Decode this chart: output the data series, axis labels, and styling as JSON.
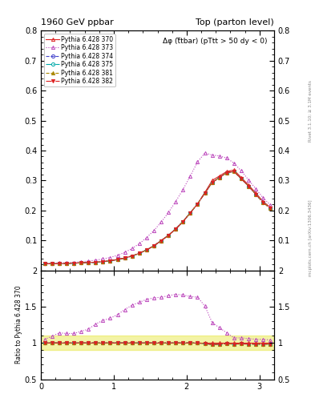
{
  "title_left": "1960 GeV ppbar",
  "title_right": "Top (parton level)",
  "annotation": "Δφ (t̅tbar) (pTtt > 50 dy < 0)",
  "right_label_top": "Rivet 3.1.10; ≥ 3.1M events",
  "right_label_bottom": "mcplots.cern.ch [arXiv:1306.3436]",
  "ylabel_ratio": "Ratio to Pythia 6.428 370",
  "xlim": [
    0,
    3.2
  ],
  "ylim_main": [
    0.0,
    0.8
  ],
  "ylim_ratio": [
    0.5,
    2.0
  ],
  "yticks_main": [
    0.0,
    0.1,
    0.2,
    0.3,
    0.4,
    0.5,
    0.6,
    0.7,
    0.8
  ],
  "yticks_ratio": [
    0.5,
    1.0,
    1.5,
    2.0
  ],
  "xticks": [
    0,
    1,
    2,
    3
  ],
  "series": [
    {
      "label": "Pythia 6.428 370",
      "color": "#dd2222",
      "marker": "^",
      "linestyle": "-",
      "fillstyle": "none",
      "markersize": 3,
      "linewidth": 0.8,
      "x": [
        0.05,
        0.15,
        0.25,
        0.35,
        0.45,
        0.55,
        0.65,
        0.75,
        0.85,
        0.95,
        1.05,
        1.15,
        1.25,
        1.35,
        1.45,
        1.55,
        1.65,
        1.75,
        1.85,
        1.95,
        2.05,
        2.15,
        2.25,
        2.35,
        2.45,
        2.55,
        2.65,
        2.75,
        2.85,
        2.95,
        3.05,
        3.15
      ],
      "y": [
        0.022,
        0.022,
        0.022,
        0.023,
        0.024,
        0.025,
        0.026,
        0.027,
        0.029,
        0.032,
        0.036,
        0.041,
        0.048,
        0.057,
        0.068,
        0.082,
        0.099,
        0.117,
        0.138,
        0.163,
        0.192,
        0.222,
        0.26,
        0.3,
        0.315,
        0.33,
        0.335,
        0.31,
        0.285,
        0.258,
        0.23,
        0.21
      ]
    },
    {
      "label": "Pythia 6.428 373",
      "color": "#bb44bb",
      "marker": "^",
      "linestyle": ":",
      "fillstyle": "none",
      "markersize": 3,
      "linewidth": 0.8,
      "x": [
        0.05,
        0.15,
        0.25,
        0.35,
        0.45,
        0.55,
        0.65,
        0.75,
        0.85,
        0.95,
        1.05,
        1.15,
        1.25,
        1.35,
        1.45,
        1.55,
        1.65,
        1.75,
        1.85,
        1.95,
        2.05,
        2.15,
        2.25,
        2.35,
        2.45,
        2.55,
        2.65,
        2.75,
        2.85,
        2.95,
        3.05,
        3.15
      ],
      "y": [
        0.023,
        0.024,
        0.025,
        0.026,
        0.027,
        0.029,
        0.031,
        0.034,
        0.038,
        0.043,
        0.05,
        0.06,
        0.073,
        0.089,
        0.109,
        0.133,
        0.161,
        0.193,
        0.23,
        0.27,
        0.315,
        0.362,
        0.392,
        0.385,
        0.382,
        0.375,
        0.358,
        0.332,
        0.302,
        0.272,
        0.242,
        0.218
      ]
    },
    {
      "label": "Pythia 6.428 374",
      "color": "#4444cc",
      "marker": "o",
      "linestyle": "--",
      "fillstyle": "none",
      "markersize": 3,
      "linewidth": 0.8,
      "x": [
        0.05,
        0.15,
        0.25,
        0.35,
        0.45,
        0.55,
        0.65,
        0.75,
        0.85,
        0.95,
        1.05,
        1.15,
        1.25,
        1.35,
        1.45,
        1.55,
        1.65,
        1.75,
        1.85,
        1.95,
        2.05,
        2.15,
        2.25,
        2.35,
        2.45,
        2.55,
        2.65,
        2.75,
        2.85,
        2.95,
        3.05,
        3.15
      ],
      "y": [
        0.022,
        0.022,
        0.022,
        0.023,
        0.024,
        0.025,
        0.026,
        0.027,
        0.029,
        0.032,
        0.036,
        0.041,
        0.048,
        0.057,
        0.068,
        0.082,
        0.099,
        0.117,
        0.138,
        0.163,
        0.192,
        0.222,
        0.258,
        0.293,
        0.31,
        0.326,
        0.33,
        0.306,
        0.281,
        0.254,
        0.226,
        0.207
      ]
    },
    {
      "label": "Pythia 6.428 375",
      "color": "#00aaaa",
      "marker": "o",
      "linestyle": "-.",
      "fillstyle": "none",
      "markersize": 3,
      "linewidth": 0.8,
      "x": [
        0.05,
        0.15,
        0.25,
        0.35,
        0.45,
        0.55,
        0.65,
        0.75,
        0.85,
        0.95,
        1.05,
        1.15,
        1.25,
        1.35,
        1.45,
        1.55,
        1.65,
        1.75,
        1.85,
        1.95,
        2.05,
        2.15,
        2.25,
        2.35,
        2.45,
        2.55,
        2.65,
        2.75,
        2.85,
        2.95,
        3.05,
        3.15
      ],
      "y": [
        0.022,
        0.022,
        0.022,
        0.023,
        0.024,
        0.025,
        0.026,
        0.027,
        0.029,
        0.032,
        0.036,
        0.041,
        0.048,
        0.057,
        0.068,
        0.082,
        0.099,
        0.117,
        0.138,
        0.163,
        0.192,
        0.222,
        0.258,
        0.293,
        0.31,
        0.326,
        0.33,
        0.306,
        0.281,
        0.254,
        0.226,
        0.207
      ]
    },
    {
      "label": "Pythia 6.428 381",
      "color": "#aa8800",
      "marker": "^",
      "linestyle": "--",
      "fillstyle": "full",
      "markersize": 3,
      "linewidth": 0.8,
      "x": [
        0.05,
        0.15,
        0.25,
        0.35,
        0.45,
        0.55,
        0.65,
        0.75,
        0.85,
        0.95,
        1.05,
        1.15,
        1.25,
        1.35,
        1.45,
        1.55,
        1.65,
        1.75,
        1.85,
        1.95,
        2.05,
        2.15,
        2.25,
        2.35,
        2.45,
        2.55,
        2.65,
        2.75,
        2.85,
        2.95,
        3.05,
        3.15
      ],
      "y": [
        0.022,
        0.022,
        0.022,
        0.023,
        0.024,
        0.025,
        0.026,
        0.027,
        0.029,
        0.032,
        0.036,
        0.041,
        0.048,
        0.057,
        0.068,
        0.082,
        0.099,
        0.117,
        0.138,
        0.163,
        0.192,
        0.222,
        0.258,
        0.293,
        0.31,
        0.326,
        0.33,
        0.306,
        0.281,
        0.254,
        0.226,
        0.207
      ]
    },
    {
      "label": "Pythia 6.428 382",
      "color": "#dd2222",
      "marker": "v",
      "linestyle": "-.",
      "fillstyle": "full",
      "markersize": 3,
      "linewidth": 0.8,
      "x": [
        0.05,
        0.15,
        0.25,
        0.35,
        0.45,
        0.55,
        0.65,
        0.75,
        0.85,
        0.95,
        1.05,
        1.15,
        1.25,
        1.35,
        1.45,
        1.55,
        1.65,
        1.75,
        1.85,
        1.95,
        2.05,
        2.15,
        2.25,
        2.35,
        2.45,
        2.55,
        2.65,
        2.75,
        2.85,
        2.95,
        3.05,
        3.15
      ],
      "y": [
        0.022,
        0.022,
        0.022,
        0.023,
        0.024,
        0.025,
        0.026,
        0.027,
        0.029,
        0.032,
        0.036,
        0.041,
        0.048,
        0.057,
        0.068,
        0.082,
        0.099,
        0.117,
        0.138,
        0.163,
        0.192,
        0.222,
        0.258,
        0.293,
        0.31,
        0.326,
        0.33,
        0.306,
        0.281,
        0.254,
        0.226,
        0.207
      ]
    }
  ],
  "ratio_series": [
    {
      "idx": 0,
      "color": "#dd2222",
      "marker": "^",
      "linestyle": "-",
      "fillstyle": "none",
      "markersize": 3,
      "y": [
        1.0,
        1.0,
        1.0,
        1.0,
        1.0,
        1.0,
        1.0,
        1.0,
        1.0,
        1.0,
        1.0,
        1.0,
        1.0,
        1.0,
        1.0,
        1.0,
        1.0,
        1.0,
        1.0,
        1.0,
        1.0,
        1.0,
        1.0,
        1.0,
        1.0,
        1.0,
        1.0,
        1.0,
        1.0,
        1.0,
        1.0,
        1.0
      ]
    },
    {
      "idx": 1,
      "color": "#bb44bb",
      "marker": "^",
      "linestyle": ":",
      "fillstyle": "none",
      "markersize": 3,
      "y": [
        1.05,
        1.09,
        1.14,
        1.13,
        1.13,
        1.16,
        1.19,
        1.26,
        1.31,
        1.34,
        1.39,
        1.46,
        1.52,
        1.56,
        1.6,
        1.62,
        1.63,
        1.65,
        1.67,
        1.66,
        1.64,
        1.63,
        1.51,
        1.28,
        1.21,
        1.14,
        1.07,
        1.07,
        1.06,
        1.05,
        1.05,
        1.04
      ]
    },
    {
      "idx": 2,
      "color": "#4444cc",
      "marker": "o",
      "linestyle": "--",
      "fillstyle": "none",
      "markersize": 3,
      "y": [
        1.0,
        1.0,
        1.0,
        1.0,
        1.0,
        1.0,
        1.0,
        1.0,
        1.0,
        1.0,
        1.0,
        1.0,
        1.0,
        1.0,
        1.0,
        1.0,
        1.0,
        1.0,
        1.0,
        1.0,
        1.0,
        1.0,
        0.992,
        0.977,
        0.984,
        0.988,
        0.985,
        0.987,
        0.986,
        0.984,
        0.983,
        0.986
      ]
    },
    {
      "idx": 3,
      "color": "#00aaaa",
      "marker": "o",
      "linestyle": "-.",
      "fillstyle": "none",
      "markersize": 3,
      "y": [
        1.0,
        1.0,
        1.0,
        1.0,
        1.0,
        1.0,
        1.0,
        1.0,
        1.0,
        1.0,
        1.0,
        1.0,
        1.0,
        1.0,
        1.0,
        1.0,
        1.0,
        1.0,
        1.0,
        1.0,
        1.0,
        1.0,
        0.992,
        0.977,
        0.984,
        0.988,
        0.985,
        0.987,
        0.986,
        0.984,
        0.983,
        0.986
      ]
    },
    {
      "idx": 4,
      "color": "#aa8800",
      "marker": "^",
      "linestyle": "--",
      "fillstyle": "full",
      "markersize": 3,
      "y": [
        1.0,
        1.0,
        1.0,
        1.0,
        1.0,
        1.0,
        1.0,
        1.0,
        1.0,
        1.0,
        1.0,
        1.0,
        1.0,
        1.0,
        1.0,
        1.0,
        1.0,
        1.0,
        1.0,
        1.0,
        1.0,
        1.0,
        0.992,
        0.977,
        0.984,
        0.988,
        0.985,
        0.987,
        0.986,
        0.984,
        0.983,
        0.986
      ]
    },
    {
      "idx": 5,
      "color": "#dd2222",
      "marker": "v",
      "linestyle": "-.",
      "fillstyle": "full",
      "markersize": 3,
      "y": [
        1.0,
        1.0,
        1.0,
        1.0,
        1.0,
        1.0,
        1.0,
        1.0,
        1.0,
        1.0,
        1.0,
        1.0,
        1.0,
        1.0,
        1.0,
        1.0,
        1.0,
        1.0,
        1.0,
        1.0,
        1.0,
        1.0,
        0.992,
        0.977,
        0.984,
        0.988,
        0.985,
        0.987,
        0.986,
        0.984,
        0.983,
        0.986
      ]
    }
  ],
  "band_color": "#dddd00",
  "band_alpha": 0.35,
  "band_lo": 0.9,
  "band_hi": 1.1
}
